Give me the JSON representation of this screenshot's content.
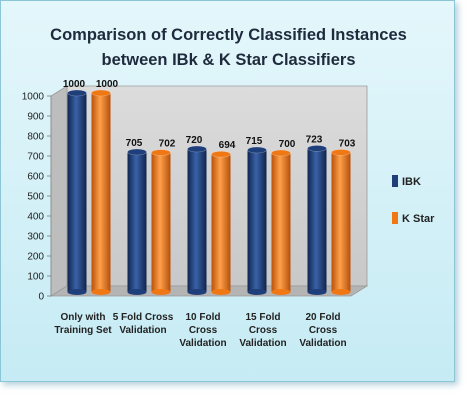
{
  "chart_data": {
    "type": "bar",
    "title_line1": "Comparison of Correctly Classified Instances",
    "title_line2": "between IBk & K Star Classifiers",
    "categories": [
      [
        "Only with",
        "Training Set"
      ],
      [
        "5 Fold Cross",
        "Validation"
      ],
      [
        "10 Fold",
        "Cross",
        "Validation"
      ],
      [
        "15 Fold",
        "Cross",
        "Validation"
      ],
      [
        "20 Fold",
        "Cross",
        "Validation"
      ]
    ],
    "series": [
      {
        "name": "IBK",
        "values": [
          1000,
          705,
          720,
          715,
          723
        ],
        "color": "#1f3f7a"
      },
      {
        "name": "K Star",
        "values": [
          1000,
          702,
          694,
          700,
          703
        ],
        "color": "#f07814"
      }
    ],
    "ylim": [
      0,
      1000
    ],
    "yticks": [
      0,
      100,
      200,
      300,
      400,
      500,
      600,
      700,
      800,
      900,
      1000
    ],
    "grid": false,
    "legend_position": "right"
  }
}
